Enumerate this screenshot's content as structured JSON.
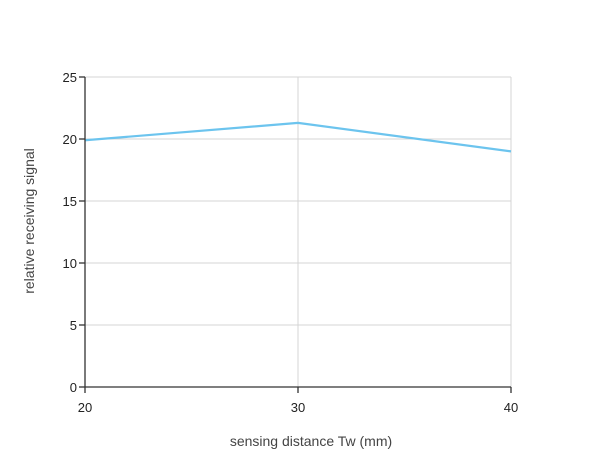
{
  "chart_data": {
    "type": "line",
    "title": "",
    "xlabel": "sensing distance Tw (mm)",
    "ylabel": "relative receiving signal",
    "x": [
      20,
      30,
      40
    ],
    "series": [
      {
        "name": "",
        "values": [
          19.9,
          21.3,
          19.0
        ]
      }
    ],
    "xlim": [
      20,
      40
    ],
    "ylim": [
      0,
      25
    ],
    "xticks": [
      20,
      30,
      40
    ],
    "yticks": [
      0,
      5,
      10,
      15,
      20,
      25
    ],
    "grid": true,
    "colors": {
      "line": "#6cc4ee",
      "axis": "#333333",
      "grid": "#d4d4d4"
    }
  }
}
